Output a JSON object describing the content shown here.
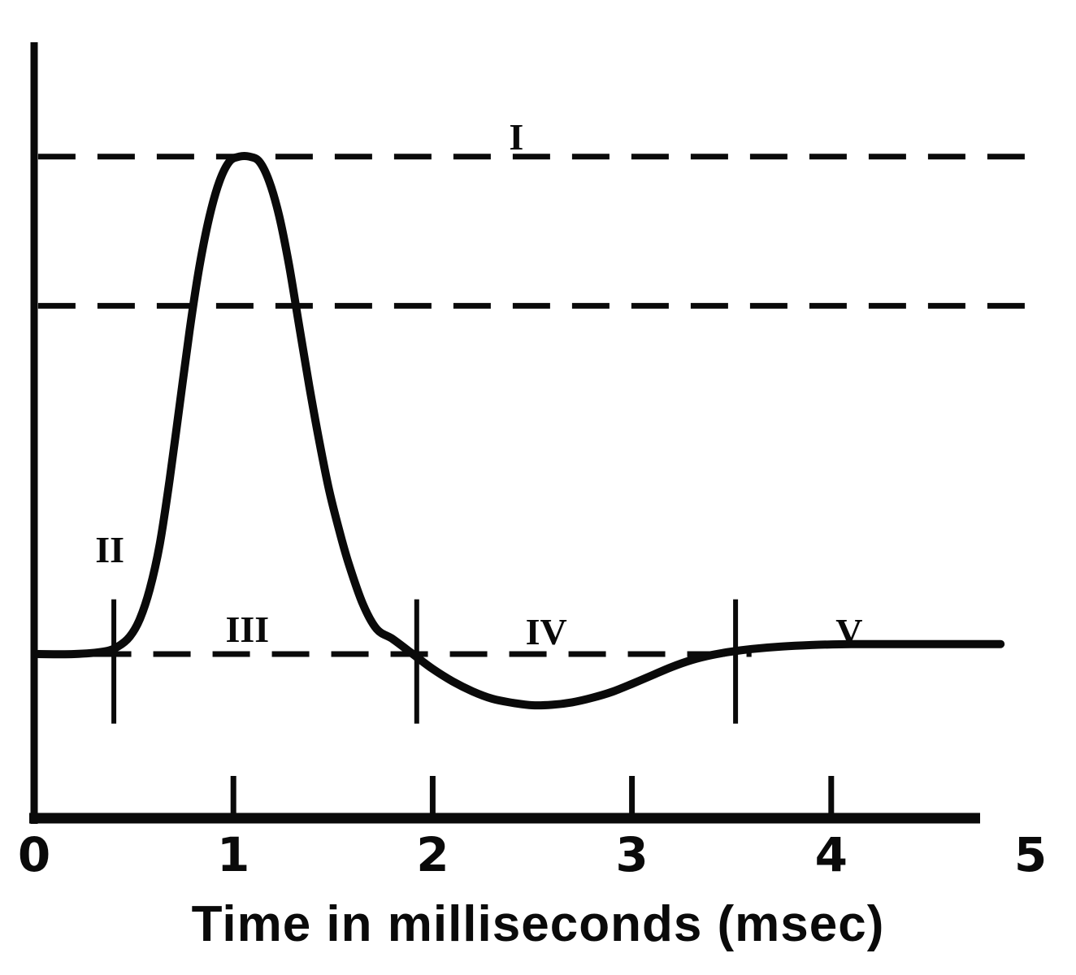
{
  "chart_data": {
    "type": "line",
    "title": "",
    "xlabel": "Time in milliseconds (msec)",
    "ylabel": "",
    "xlim": [
      0,
      5
    ],
    "ylim": [
      -33,
      122.5
    ],
    "grid": false,
    "legend": "none",
    "y_axis_note": "no y-axis tick labels; values in arbitrary units (resting baseline = 0, peak dashed line = 100, middle dashed line = 70)",
    "x_tick_values": [
      0,
      1,
      2,
      3,
      4,
      5
    ],
    "x_tick_labels": [
      "0",
      "1",
      "2",
      "3",
      "4",
      "5"
    ],
    "x_tick_marks": [
      1,
      2,
      3,
      4
    ],
    "reference_lines": [
      {
        "name": "peak-level",
        "y": 100,
        "x_start": 0.02,
        "x_end": 4.99,
        "style": "dashed"
      },
      {
        "name": "mid-level",
        "y": 70,
        "x_start": 0.02,
        "x_end": 4.99,
        "style": "dashed"
      },
      {
        "name": "resting-level",
        "y": 0,
        "x_start": 0.3,
        "x_end": 3.6,
        "style": "dashed"
      }
    ],
    "phase_boundaries": [
      {
        "x": 0.4,
        "y_from": -14,
        "y_to": 11
      },
      {
        "x": 1.92,
        "y_from": -14,
        "y_to": 11
      },
      {
        "x": 3.52,
        "y_from": -14,
        "y_to": 11
      }
    ],
    "phase_labels": [
      {
        "label": "I",
        "x": 2.42,
        "y": 104
      },
      {
        "label": "II",
        "x": 0.38,
        "y": 21
      },
      {
        "label": "III",
        "x": 1.07,
        "y": 5
      },
      {
        "label": "IV",
        "x": 2.57,
        "y": 4.5
      },
      {
        "label": "V",
        "x": 4.09,
        "y": 4.5
      }
    ],
    "series": [
      {
        "name": "action-potential-curve",
        "x": [
          0.02,
          0.2,
          0.35,
          0.42,
          0.48,
          0.53,
          0.58,
          0.63,
          0.68,
          0.73,
          0.78,
          0.83,
          0.88,
          0.93,
          0.98,
          1.03,
          1.08,
          1.13,
          1.18,
          1.23,
          1.28,
          1.33,
          1.38,
          1.43,
          1.48,
          1.53,
          1.58,
          1.65,
          1.72,
          1.8,
          1.9,
          2.0,
          2.1,
          2.2,
          2.3,
          2.4,
          2.5,
          2.6,
          2.7,
          2.8,
          2.9,
          3.0,
          3.1,
          3.2,
          3.3,
          3.4,
          3.5,
          3.6,
          3.75,
          3.9,
          4.1,
          4.4,
          4.85
        ],
        "y": [
          0,
          0,
          0.5,
          1.5,
          3.5,
          7,
          13,
          22,
          35,
          50,
          65,
          78,
          88,
          95,
          99,
          100,
          100,
          99,
          95,
          88,
          78,
          66,
          54,
          43,
          33,
          25,
          18,
          10,
          5,
          3,
          0,
          -3,
          -5.5,
          -7.5,
          -9,
          -9.8,
          -10.3,
          -10.2,
          -9.7,
          -8.8,
          -7.6,
          -6,
          -4.3,
          -2.6,
          -1.2,
          -0.2,
          0.5,
          1,
          1.5,
          1.8,
          2,
          2,
          2
        ]
      }
    ],
    "colors": {
      "ink": "#0a0a0a",
      "background": "#ffffff"
    }
  }
}
